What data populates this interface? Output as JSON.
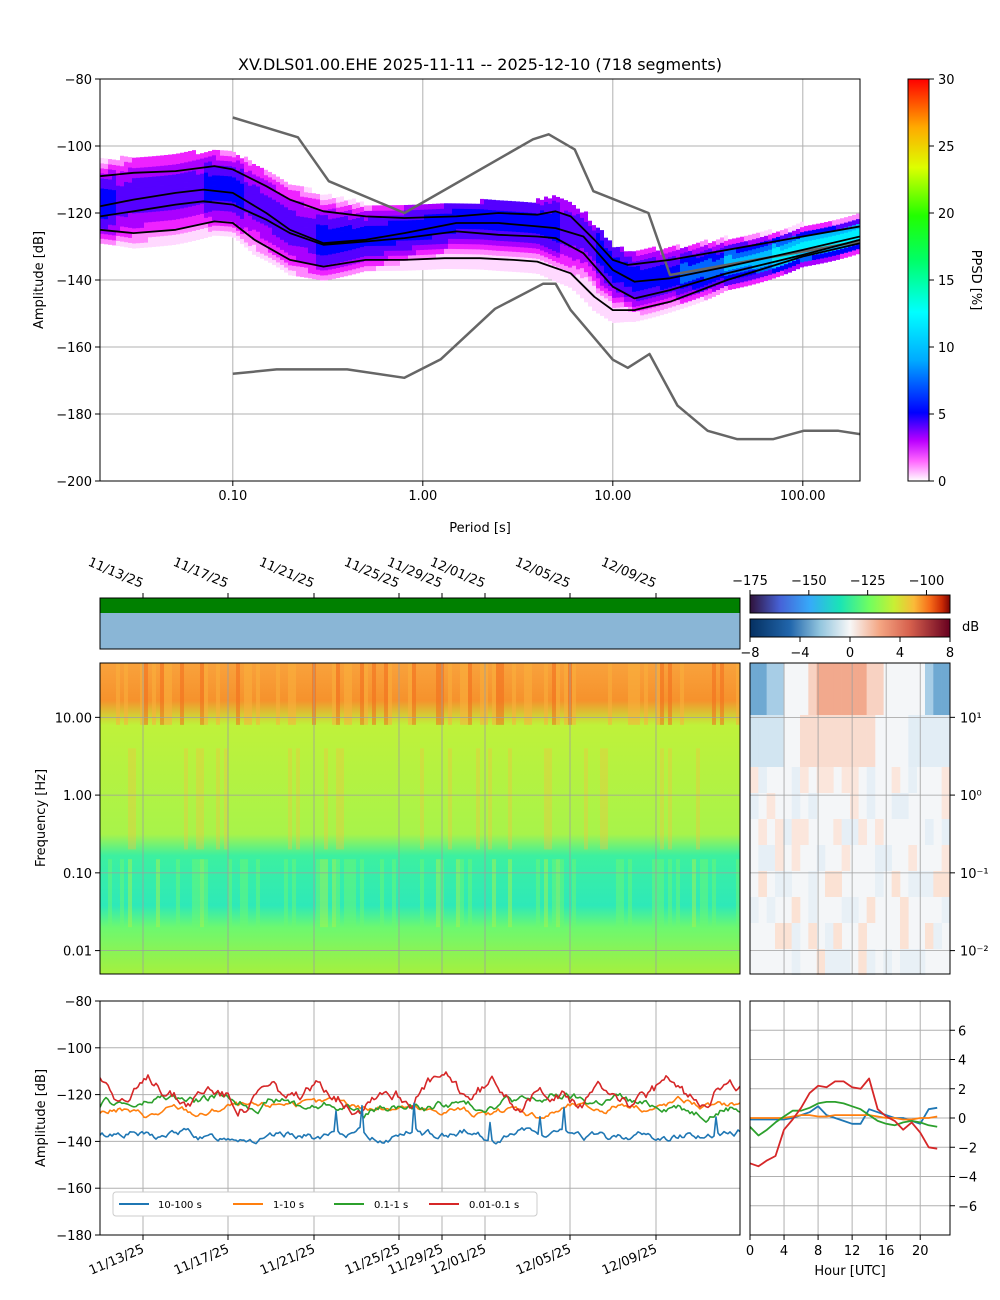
{
  "chart_data": [
    {
      "type": "area",
      "title": "XV.DLS01.00.EHE   2025-11-11 -- 2025-12-10  (718 segments)",
      "xlabel": "Period [s]",
      "ylabel": "Amplitude [dB]",
      "xscale": "log",
      "xlim": [
        0.02,
        200
      ],
      "ylim": [
        -200,
        -80
      ],
      "xticks": [
        "0.10",
        "1.00",
        "10.00",
        "100.00"
      ],
      "yticks": [
        "−200",
        "−180",
        "−160",
        "−140",
        "−120",
        "−100",
        "−80"
      ],
      "grid": true,
      "colorbar": {
        "label": "PPSD [%]",
        "range": [
          0,
          30
        ],
        "ticks": [
          "0",
          "5",
          "10",
          "15",
          "20",
          "25",
          "30"
        ]
      },
      "nhnm": {
        "x": [
          0.1,
          0.22,
          0.32,
          0.8,
          3.8,
          4.6,
          6.3,
          7.9,
          15.4,
          20,
          354.8
        ],
        "y": [
          -91.5,
          -97.4,
          -110.5,
          -120,
          -98,
          -96.5,
          -101,
          -113.5,
          -120,
          -138.5,
          -126
        ]
      },
      "nlnm": {
        "x": [
          0.1,
          0.17,
          0.4,
          0.8,
          1.24,
          2.4,
          4.3,
          5,
          6,
          10,
          12,
          15.6,
          21.9,
          31.6,
          45,
          70,
          101,
          154,
          200
        ],
        "y": [
          -168,
          -166.7,
          -166.7,
          -169.2,
          -163.7,
          -148.6,
          -141.1,
          -141.1,
          -149,
          -163.8,
          -166.2,
          -162.1,
          -177.5,
          -185,
          -187.5,
          -187.5,
          -185,
          -185,
          -186
        ]
      },
      "percentile_high": {
        "x": [
          0.02,
          0.03,
          0.05,
          0.08,
          0.1,
          0.15,
          0.2,
          0.3,
          0.5,
          0.8,
          1.5,
          2.5,
          4,
          5,
          6,
          8,
          10,
          12,
          20,
          40,
          100,
          200
        ],
        "y": [
          -109,
          -108,
          -107.5,
          -106,
          -107,
          -112,
          -116,
          -119.5,
          -121,
          -121.5,
          -121,
          -120,
          -120.5,
          -119.5,
          -121,
          -128,
          -134,
          -135.5,
          -134,
          -131,
          -127,
          -124
        ]
      },
      "mode": {
        "x": [
          0.02,
          0.03,
          0.05,
          0.07,
          0.1,
          0.15,
          0.2,
          0.3,
          0.5,
          0.8,
          1.5,
          2.5,
          4,
          5,
          7,
          10,
          13,
          20,
          40,
          100,
          200
        ],
        "y": [
          -118,
          -116,
          -114,
          -113,
          -114,
          -120,
          -125,
          -129,
          -128,
          -126,
          -123,
          -123,
          -124,
          -124.5,
          -127,
          -137,
          -140.5,
          -139.5,
          -136,
          -131,
          -127
        ]
      },
      "percentile_low": {
        "x": [
          0.02,
          0.03,
          0.05,
          0.08,
          0.1,
          0.13,
          0.2,
          0.3,
          0.5,
          0.8,
          1.3,
          2,
          3,
          4,
          6,
          8,
          10,
          13,
          20,
          40,
          100,
          200
        ],
        "y": [
          -125,
          -126,
          -125,
          -122.5,
          -123,
          -128,
          -134,
          -136,
          -134,
          -134,
          -133.5,
          -133.5,
          -134,
          -134.5,
          -138,
          -145,
          -149,
          -149,
          -146.5,
          -140,
          -133,
          -129
        ]
      },
      "mean": {
        "x": [
          0.02,
          0.03,
          0.05,
          0.07,
          0.1,
          0.15,
          0.2,
          0.3,
          0.5,
          0.8,
          1.5,
          2.5,
          4,
          5,
          7,
          10,
          13,
          20,
          40,
          100,
          200
        ],
        "y": [
          -121,
          -119.5,
          -117.5,
          -116.5,
          -117.5,
          -122,
          -126,
          -129.5,
          -128.5,
          -127.5,
          -125.5,
          -126.5,
          -127,
          -127.5,
          -132,
          -142,
          -145.5,
          -143,
          -138,
          -132.5,
          -128
        ]
      }
    },
    {
      "type": "heatmap",
      "ylabel": "Frequency [Hz]",
      "yscale": "log",
      "ylim": [
        0.005,
        50
      ],
      "yticks": [
        "0.01",
        "0.10",
        "1.00",
        "10.00"
      ],
      "dates": [
        "11/13/25",
        "11/17/25",
        "11/21/25",
        "11/25/25",
        "11/29/25",
        "12/01/25",
        "12/05/25",
        "12/09/25"
      ],
      "colorbar": {
        "range": [
          -175,
          -90
        ],
        "ticks": [
          "−175",
          "−150",
          "−125",
          "−100"
        ]
      },
      "bands": [
        {
          "from_hz": 8,
          "to_hz": 50,
          "db": -110
        },
        {
          "from_hz": 0.15,
          "to_hz": 8,
          "db": -132
        },
        {
          "from_hz": 0.02,
          "to_hz": 0.15,
          "db": -145
        },
        {
          "from_hz": 0.005,
          "to_hz": 0.02,
          "db": -132
        }
      ]
    },
    {
      "type": "heatmap",
      "xlabel": "Hour [UTC]",
      "ylim": [
        0.005,
        50
      ],
      "yticks": [
        "10⁻²",
        "10⁻¹",
        "10⁰",
        "10¹"
      ],
      "colorbar": {
        "label": "dB",
        "range": [
          -8,
          8
        ],
        "ticks": [
          "−8",
          "−4",
          "0",
          "4",
          "8"
        ]
      }
    },
    {
      "type": "line",
      "ylabel": "Amplitude [dB]",
      "ylim": [
        -180,
        -80
      ],
      "yticks": [
        "−180",
        "−160",
        "−140",
        "−120",
        "−100",
        "−80"
      ],
      "dates": [
        "11/13/25",
        "11/17/25",
        "11/21/25",
        "11/25/25",
        "11/29/25",
        "12/01/25",
        "12/05/25",
        "12/09/25"
      ],
      "series": [
        {
          "name": "10-100 s",
          "color": "#1f77b4",
          "level": -137.5
        },
        {
          "name": "1-10 s",
          "color": "#ff7f0e",
          "level": -126
        },
        {
          "name": "0.1-1 s",
          "color": "#2ca02c",
          "level": -124
        },
        {
          "name": "0.01-0.1 s",
          "color": "#d62728",
          "level": -119
        }
      ]
    },
    {
      "type": "line",
      "xlabel": "Hour [UTC]",
      "xlim": [
        0,
        23.5
      ],
      "ylim": [
        -8,
        8
      ],
      "xticks": [
        "0",
        "4",
        "8",
        "12",
        "16",
        "20"
      ],
      "yticks": [
        "−6",
        "−4",
        "−2",
        "0",
        "2",
        "4",
        "6"
      ],
      "hours": [
        0,
        1,
        2,
        3,
        4,
        5,
        6,
        7,
        8,
        9,
        10,
        11,
        12,
        13,
        14,
        15,
        16,
        17,
        18,
        19,
        20,
        21,
        22
      ],
      "series": [
        {
          "name": "10-100 s",
          "color": "#1f77b4",
          "values": [
            -0.1,
            -0.1,
            -0.1,
            -0.1,
            -0.1,
            0,
            0.2,
            0.4,
            0.8,
            0.2,
            0,
            -0.2,
            -0.4,
            -0.4,
            0.6,
            0.4,
            0.2,
            0,
            0,
            -0.2,
            -0.4,
            0.6,
            0.7
          ]
        },
        {
          "name": "1-10 s",
          "color": "#ff7f0e",
          "values": [
            0,
            0,
            0,
            0,
            0,
            0.1,
            0.2,
            0.2,
            0.1,
            0.1,
            0.2,
            0.2,
            0.2,
            0.2,
            0.2,
            0.1,
            0,
            0,
            -0.1,
            -0.1,
            0,
            0,
            0.1
          ]
        },
        {
          "name": "0.1-1 s",
          "color": "#2ca02c",
          "values": [
            -0.6,
            -1.2,
            -0.8,
            -0.3,
            0.1,
            0.5,
            0.5,
            0.7,
            1,
            1.1,
            1.1,
            1,
            0.8,
            0.6,
            0.2,
            -0.2,
            -0.4,
            -0.5,
            -0.3,
            -0.2,
            -0.3,
            -0.5,
            -0.6
          ]
        },
        {
          "name": "0.01-0.1 s",
          "color": "#d62728",
          "values": [
            -3.1,
            -3.3,
            -2.9,
            -2.6,
            -0.8,
            -0.1,
            0.7,
            1.7,
            2.2,
            2.1,
            2.5,
            2.5,
            2.1,
            2.0,
            2.7,
            0.6,
            0.1,
            -0.2,
            -0.8,
            -0.3,
            -1.0,
            -2.0,
            -2.1
          ]
        }
      ]
    }
  ]
}
